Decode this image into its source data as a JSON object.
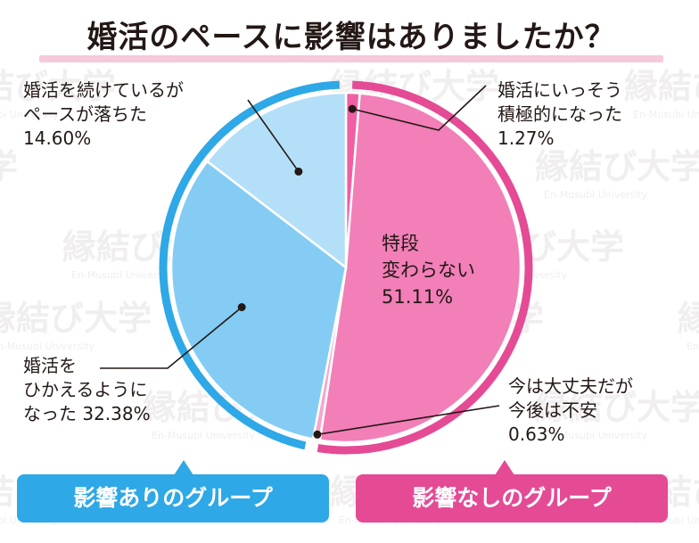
{
  "title": "婚活のペースに影響はありましたか？",
  "watermark": {
    "brand": "縁結び大学",
    "sub": "En-Musubi University"
  },
  "groups": {
    "affected": {
      "label": "影響ありのグループ",
      "color": "#2ea8e6"
    },
    "unaffected": {
      "label": "影響なしのグループ",
      "color": "#e54a95"
    }
  },
  "chart_data": {
    "type": "pie",
    "title": "婚活のペースに影響はありましたか？",
    "slices": [
      {
        "label_lines": [
          "婚活にいっそう",
          "積極的になった"
        ],
        "value_text": "1.27%",
        "value": 1.27,
        "color": "#ef5fa3"
      },
      {
        "label_lines": [
          "特段",
          "変わらない"
        ],
        "value_text": "51.11%",
        "value": 51.11,
        "color": "#f27fb8"
      },
      {
        "label_lines": [
          "今は大丈夫だが",
          "今後は不安"
        ],
        "value_text": "0.63%",
        "value": 0.63,
        "color": "#f4a6cc"
      },
      {
        "label_lines": [
          "婚活を",
          "ひかえるように",
          "なった"
        ],
        "value_text": "32.38%",
        "value": 32.38,
        "color": "#84ccf3"
      },
      {
        "label_lines": [
          "婚活を続けているが",
          "ペースが落ちた"
        ],
        "value_text": "14.60%",
        "value": 14.6,
        "color": "#b3e0f8"
      }
    ],
    "group_rings": [
      {
        "group": "unaffected",
        "slice_indices": [
          0,
          1,
          2
        ]
      },
      {
        "group": "affected",
        "slice_indices": [
          3,
          4
        ]
      }
    ]
  }
}
